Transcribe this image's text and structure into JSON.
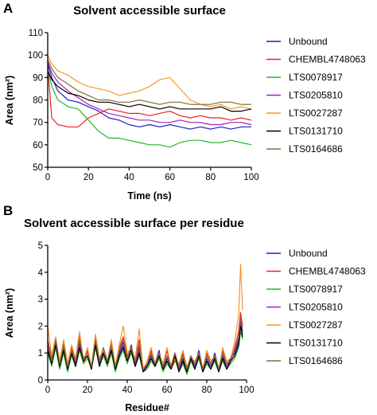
{
  "panels": [
    {
      "letter": "A",
      "title": "Solvent accessible surface",
      "ylabel": "Area (nm²)",
      "xlabel": "Time (ns)"
    },
    {
      "letter": "B",
      "title": "Solvent accessible surface per residue",
      "ylabel": "Area (nm²)",
      "xlabel": "Residue#"
    }
  ],
  "chart_data": [
    {
      "type": "line",
      "title": "Solvent accessible surface",
      "xlabel": "Time (ns)",
      "ylabel": "Area (nm²)",
      "xlim": [
        0,
        100
      ],
      "ylim": [
        50,
        110
      ],
      "xticks": [
        0,
        20,
        40,
        60,
        80,
        100
      ],
      "yticks": [
        50,
        60,
        70,
        80,
        90,
        100,
        110
      ],
      "grid": false,
      "legend": "right",
      "x": [
        0,
        2,
        5,
        10,
        15,
        20,
        25,
        30,
        35,
        40,
        45,
        50,
        55,
        60,
        65,
        70,
        75,
        80,
        85,
        90,
        95,
        100
      ],
      "series": [
        {
          "name": "Unbound",
          "color": "#1f1fbf",
          "values": [
            96,
            90,
            84,
            80,
            79,
            77,
            75,
            72,
            71,
            69,
            68,
            69,
            68,
            69,
            68,
            67,
            68,
            67,
            68,
            67,
            68,
            68
          ]
        },
        {
          "name": "CHEMBL4748063",
          "color": "#e8231c",
          "values": [
            95,
            72,
            69,
            68,
            68,
            72,
            74,
            76,
            75,
            74,
            74,
            73,
            74,
            75,
            73,
            72,
            73,
            72,
            72,
            71,
            72,
            71
          ]
        },
        {
          "name": "LTS0078917",
          "color": "#2ab52a",
          "values": [
            94,
            86,
            80,
            77,
            76,
            71,
            66,
            63,
            63,
            62,
            61,
            60,
            60,
            59,
            61,
            62,
            62,
            61,
            61,
            62,
            61,
            60
          ]
        },
        {
          "name": "LTS0205810",
          "color": "#a020c8",
          "values": [
            97,
            92,
            88,
            84,
            81,
            78,
            76,
            74,
            73,
            72,
            71,
            71,
            70,
            70,
            71,
            70,
            70,
            69,
            69,
            70,
            70,
            69
          ]
        },
        {
          "name": "LTS0027287",
          "color": "#f5962a",
          "values": [
            100,
            96,
            93,
            91,
            88,
            86,
            85,
            84,
            82,
            83,
            84,
            86,
            89,
            90,
            85,
            80,
            78,
            77,
            78,
            76,
            77,
            76
          ]
        },
        {
          "name": "LTS0131710",
          "color": "#000000",
          "values": [
            93,
            89,
            86,
            83,
            82,
            80,
            79,
            79,
            78,
            77,
            78,
            77,
            76,
            77,
            76,
            76,
            76,
            76,
            77,
            75,
            75,
            76
          ]
        },
        {
          "name": "LTS0164686",
          "color": "#8b6a3a",
          "values": [
            98,
            94,
            90,
            87,
            84,
            82,
            80,
            80,
            79,
            79,
            80,
            79,
            78,
            79,
            79,
            78,
            78,
            78,
            79,
            79,
            78,
            78
          ]
        }
      ]
    },
    {
      "type": "line",
      "title": "Solvent accessible surface per residue",
      "xlabel": "Residue#",
      "ylabel": "Area (nm²)",
      "xlim": [
        0,
        100
      ],
      "ylim": [
        0,
        5
      ],
      "xticks": [
        0,
        20,
        40,
        60,
        80,
        100
      ],
      "yticks": [
        0,
        1,
        2,
        3,
        4,
        5
      ],
      "grid": false,
      "legend": "right",
      "x": [
        0,
        2,
        4,
        6,
        8,
        10,
        12,
        14,
        16,
        18,
        20,
        22,
        24,
        26,
        28,
        30,
        32,
        34,
        36,
        38,
        40,
        42,
        44,
        46,
        48,
        50,
        52,
        54,
        56,
        58,
        60,
        62,
        64,
        66,
        68,
        70,
        72,
        74,
        76,
        78,
        80,
        82,
        84,
        86,
        88,
        90,
        92,
        94,
        96,
        97,
        98
      ],
      "series": [
        {
          "name": "Unbound",
          "color": "#1f1fbf",
          "values": [
            1.2,
            0.7,
            1.5,
            0.5,
            1.3,
            0.4,
            1.1,
            0.6,
            1.4,
            0.8,
            1.0,
            0.5,
            1.5,
            0.6,
            1.2,
            0.7,
            1.3,
            0.5,
            1.0,
            1.4,
            0.8,
            1.3,
            0.6,
            1.2,
            0.4,
            0.5,
            0.9,
            0.6,
            1.1,
            0.4,
            0.8,
            0.5,
            1.0,
            0.4,
            0.8,
            0.3,
            0.9,
            0.5,
            1.1,
            0.4,
            0.8,
            0.5,
            1.0,
            0.4,
            0.9,
            0.5,
            0.8,
            1.0,
            1.5,
            2.2,
            1.8
          ]
        },
        {
          "name": "CHEMBL4748063",
          "color": "#e8231c",
          "values": [
            1.5,
            0.8,
            1.3,
            0.6,
            1.4,
            0.5,
            1.2,
            0.7,
            1.7,
            0.6,
            1.1,
            0.4,
            1.6,
            0.7,
            1.0,
            0.6,
            1.4,
            0.4,
            1.2,
            1.6,
            0.9,
            1.1,
            0.7,
            1.5,
            0.3,
            0.6,
            1.1,
            0.5,
            0.9,
            0.5,
            1.1,
            0.4,
            0.7,
            0.5,
            1.0,
            0.4,
            0.7,
            0.6,
            0.9,
            0.3,
            1.0,
            0.6,
            0.8,
            0.3,
            1.1,
            0.6,
            0.7,
            1.2,
            1.8,
            2.5,
            2.0
          ]
        },
        {
          "name": "LTS0078917",
          "color": "#2ab52a",
          "values": [
            1.0,
            0.5,
            1.2,
            0.4,
            1.0,
            0.3,
            0.9,
            0.5,
            1.1,
            0.6,
            0.8,
            0.4,
            1.2,
            0.5,
            0.9,
            0.5,
            1.0,
            0.3,
            0.8,
            1.1,
            0.6,
            1.0,
            0.5,
            0.9,
            0.3,
            0.4,
            0.7,
            0.5,
            0.8,
            0.3,
            0.6,
            0.4,
            0.8,
            0.3,
            0.6,
            0.2,
            0.7,
            0.4,
            0.8,
            0.3,
            0.6,
            0.4,
            0.7,
            0.3,
            0.7,
            0.4,
            0.6,
            0.8,
            1.2,
            1.8,
            1.5
          ]
        },
        {
          "name": "LTS0205810",
          "color": "#a020c8",
          "values": [
            1.3,
            0.6,
            1.4,
            0.5,
            1.2,
            0.4,
            1.0,
            0.6,
            1.3,
            0.7,
            0.9,
            0.5,
            1.4,
            0.6,
            1.1,
            0.6,
            1.2,
            0.4,
            0.9,
            1.3,
            0.7,
            1.2,
            0.6,
            1.1,
            0.4,
            0.5,
            0.8,
            0.6,
            1.0,
            0.4,
            0.7,
            0.5,
            0.9,
            0.4,
            0.7,
            0.3,
            0.8,
            0.5,
            1.0,
            0.4,
            0.7,
            0.5,
            0.9,
            0.4,
            0.8,
            0.5,
            0.7,
            0.9,
            1.4,
            2.1,
            1.7
          ]
        },
        {
          "name": "LTS0027287",
          "color": "#f5962a",
          "values": [
            2.0,
            0.9,
            1.6,
            0.7,
            1.5,
            0.6,
            1.3,
            0.8,
            1.8,
            0.7,
            1.2,
            0.5,
            1.7,
            0.8,
            1.1,
            0.7,
            1.5,
            0.5,
            1.3,
            2.0,
            1.0,
            1.2,
            0.8,
            1.9,
            0.4,
            0.7,
            1.2,
            0.6,
            1.0,
            0.6,
            1.2,
            0.5,
            0.8,
            0.6,
            1.1,
            0.5,
            0.8,
            0.7,
            1.0,
            0.4,
            1.1,
            0.7,
            0.9,
            0.4,
            1.2,
            0.7,
            0.8,
            1.4,
            2.4,
            4.3,
            2.6
          ]
        },
        {
          "name": "LTS0131710",
          "color": "#000000",
          "values": [
            1.1,
            0.6,
            1.3,
            0.5,
            1.1,
            0.4,
            1.0,
            0.5,
            1.2,
            0.7,
            0.9,
            0.4,
            1.3,
            0.5,
            1.0,
            0.6,
            1.1,
            0.4,
            0.9,
            1.2,
            0.7,
            1.1,
            0.5,
            1.0,
            0.3,
            0.5,
            0.8,
            0.5,
            0.9,
            0.4,
            0.7,
            0.4,
            0.9,
            0.3,
            0.7,
            0.3,
            0.8,
            0.4,
            0.9,
            0.3,
            0.7,
            0.4,
            0.8,
            0.3,
            0.8,
            0.4,
            0.7,
            0.9,
            1.3,
            2.0,
            1.6
          ]
        },
        {
          "name": "LTS0164686",
          "color": "#8b6a3a",
          "values": [
            1.4,
            0.7,
            1.5,
            0.6,
            1.3,
            0.5,
            1.1,
            0.7,
            1.5,
            0.8,
            1.0,
            0.5,
            1.5,
            0.7,
            1.2,
            0.7,
            1.3,
            0.5,
            1.1,
            1.5,
            0.8,
            1.2,
            0.7,
            1.3,
            0.4,
            0.6,
            1.0,
            0.6,
            1.0,
            0.5,
            0.9,
            0.5,
            1.0,
            0.5,
            0.9,
            0.4,
            0.9,
            0.6,
            1.0,
            0.4,
            0.9,
            0.6,
            0.9,
            0.4,
            1.0,
            0.6,
            0.8,
            1.1,
            1.6,
            2.3,
            1.9
          ]
        }
      ]
    }
  ]
}
